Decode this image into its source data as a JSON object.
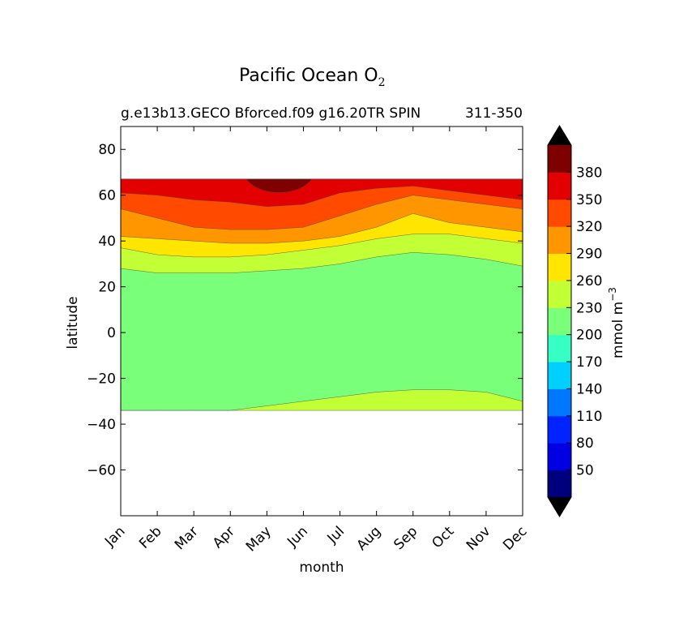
{
  "chart_data": {
    "type": "contourf",
    "title": "Pacific Ocean O",
    "title_subscript": "2",
    "subtitle_left": "g.e13b13.GECO Bforced.f09 g16.20TR SPIN",
    "subtitle_right": "311-350",
    "xlabel": "month",
    "ylabel": "latitude",
    "x_ticks": [
      "Jan",
      "Feb",
      "Mar",
      "Apr",
      "May",
      "Jun",
      "Jul",
      "Aug",
      "Sep",
      "Oct",
      "Nov",
      "Dec"
    ],
    "ylim": [
      -80,
      90
    ],
    "y_ticks": [
      80,
      60,
      40,
      20,
      0,
      -20,
      -40,
      -60
    ],
    "y_tick_labels": [
      "80",
      "60",
      "40",
      "20",
      "0",
      "−20",
      "−40",
      "−60"
    ],
    "data_extent_lat": [
      -34,
      67
    ],
    "colorbar": {
      "label": "mmol m",
      "label_superscript": "−3",
      "levels": [
        20,
        50,
        80,
        110,
        140,
        170,
        200,
        230,
        260,
        290,
        320,
        350,
        380,
        410
      ],
      "tick_labels": [
        "50",
        "80",
        "110",
        "140",
        "170",
        "200",
        "230",
        "260",
        "290",
        "320",
        "350",
        "380"
      ],
      "colors": [
        "#00007f",
        "#0000e3",
        "#0023ff",
        "#0077ff",
        "#00d0ff",
        "#35ffc2",
        "#7aff7a",
        "#c2ff35",
        "#ffe500",
        "#ff9600",
        "#ff4a00",
        "#e30000",
        "#7f0000"
      ],
      "extend_low_color": "#000000",
      "extend_high_color": "#000000"
    },
    "contour_boundaries": [
      {
        "level": 230,
        "south_lat_by_month": [
          -34,
          -34,
          -34,
          -34,
          -32,
          -30,
          -28,
          -26,
          -25,
          -25,
          -26,
          -30
        ]
      },
      {
        "level": 230,
        "north_lat_by_month": [
          28,
          26,
          26,
          26,
          27,
          28,
          30,
          33,
          35,
          34,
          32,
          29
        ]
      },
      {
        "level": 260,
        "north_lat_by_month": [
          37,
          34,
          33,
          33,
          34,
          36,
          38,
          41,
          43,
          43,
          41,
          39
        ]
      },
      {
        "level": 290,
        "north_lat_by_month": [
          42,
          41,
          40,
          39,
          39,
          40,
          42,
          46,
          52,
          48,
          46,
          44
        ]
      },
      {
        "level": 320,
        "north_lat_by_month": [
          54,
          50,
          46,
          45,
          45,
          46,
          51,
          56,
          60,
          58,
          56,
          54
        ]
      },
      {
        "level": 350,
        "north_lat_by_month": [
          61,
          60,
          58,
          57,
          55,
          56,
          61,
          63,
          64,
          62,
          60,
          58
        ]
      },
      {
        "level": 380,
        "patch": {
          "month_start": "May",
          "month_end": "Jun",
          "lat_min": 60,
          "lat_max": 67
        }
      }
    ]
  }
}
